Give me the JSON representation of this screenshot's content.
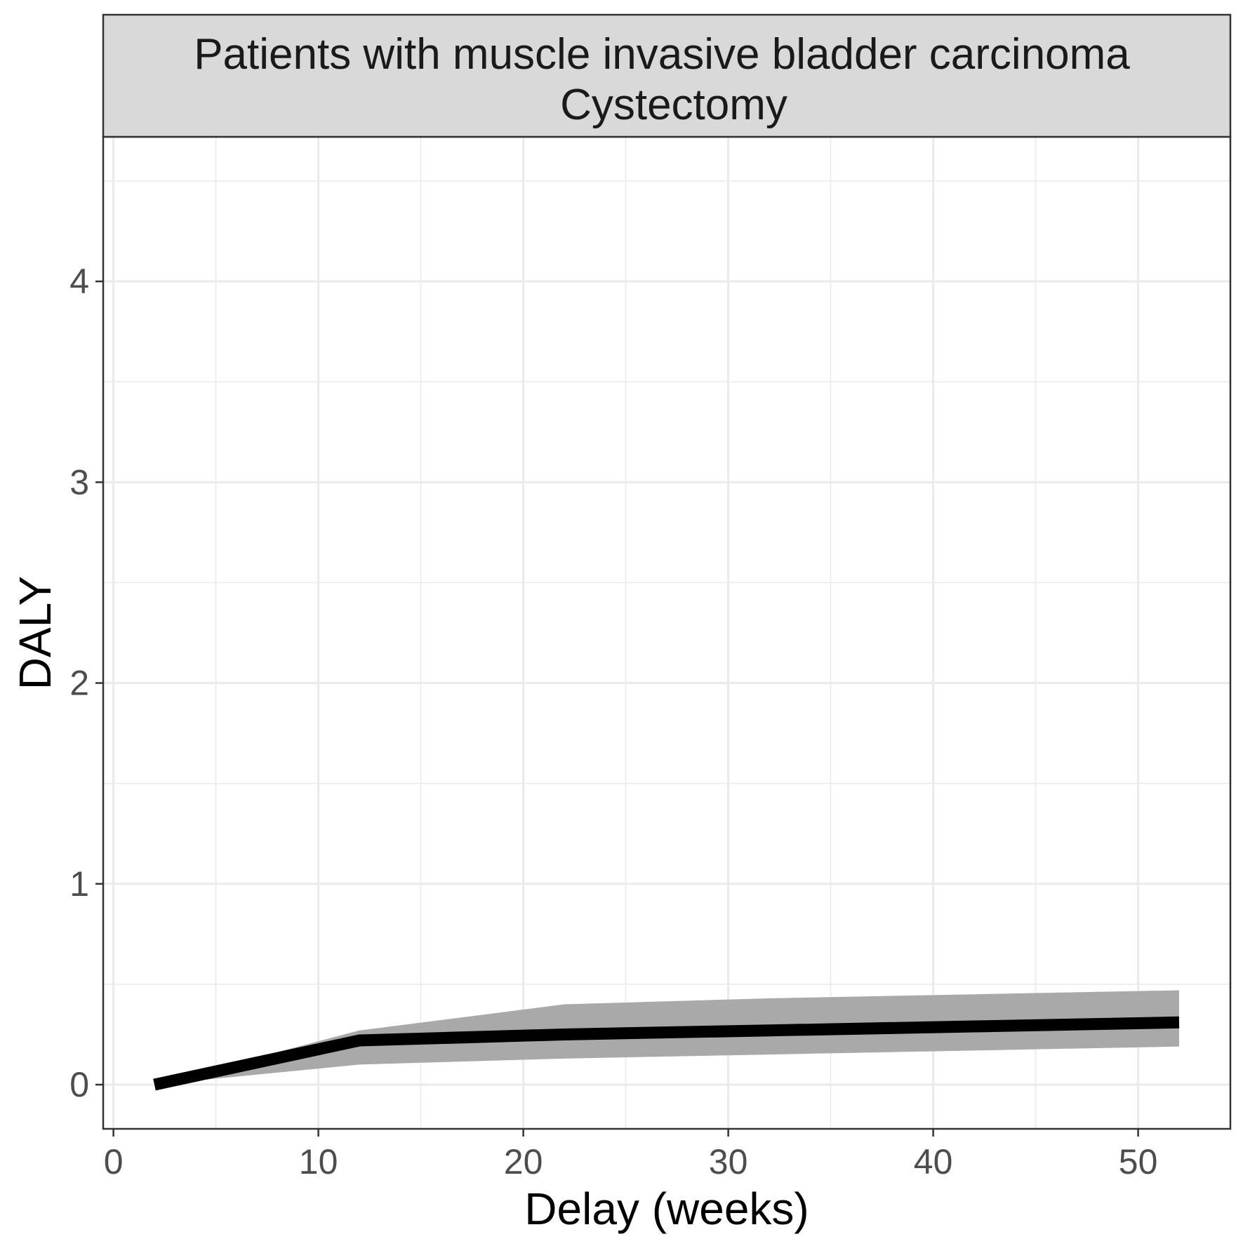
{
  "chart_data": {
    "type": "line",
    "facet_title_line1": "Patients with muscle invasive bladder carcinoma",
    "facet_title_line2": "Cystectomy",
    "xlabel": "Delay (weeks)",
    "ylabel": "DALY",
    "xlim": [
      -0.5,
      54.5
    ],
    "ylim": [
      -0.22,
      4.72
    ],
    "x_ticks": [
      0,
      10,
      20,
      30,
      40,
      50
    ],
    "y_ticks": [
      0,
      1,
      2,
      3,
      4
    ],
    "x_minor": [
      5,
      15,
      25,
      35,
      45
    ],
    "y_minor": [
      0.5,
      1.5,
      2.5,
      3.5,
      4.5
    ],
    "grid": true,
    "series": [
      {
        "x": [
          2,
          12,
          22,
          32,
          42,
          52
        ],
        "y": [
          0,
          0.22,
          0.25,
          0.27,
          0.29,
          0.31
        ],
        "lower": [
          0,
          0.1,
          0.13,
          0.15,
          0.17,
          0.19
        ],
        "upper": [
          0,
          0.27,
          0.4,
          0.43,
          0.45,
          0.47
        ]
      }
    ],
    "colors": {
      "line": "#000000",
      "ribbon": "#a9a9a9",
      "strip": "#d9d9d9",
      "grid": "#ebebeb",
      "axis_text": "#4d4d4d"
    }
  }
}
